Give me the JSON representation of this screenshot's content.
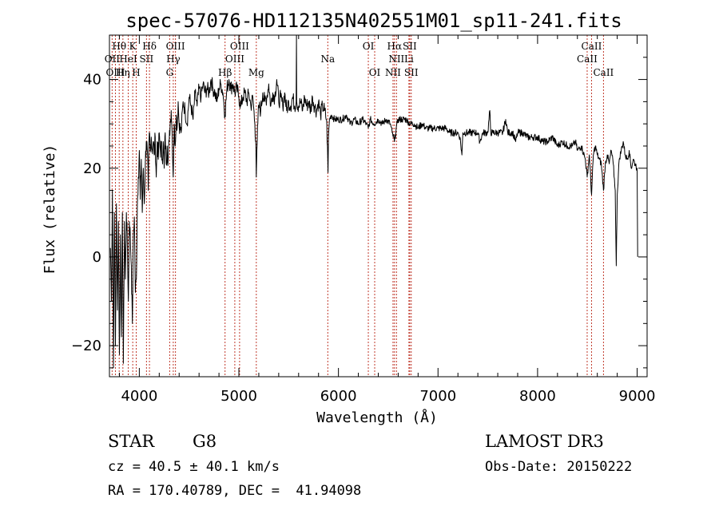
{
  "chart_data": {
    "type": "line",
    "title": "spec-57076-HD112135N402551M01_sp11-241.fits",
    "xlabel": "Wavelength (Å)",
    "ylabel": "Flux (relative)",
    "xlim": [
      3700,
      9100
    ],
    "ylim": [
      -27,
      50
    ],
    "xticks": [
      {
        "value": 4000,
        "label": "4000"
      },
      {
        "value": 5000,
        "label": "5000"
      },
      {
        "value": 6000,
        "label": "6000"
      },
      {
        "value": 7000,
        "label": "7000"
      },
      {
        "value": 8000,
        "label": "8000"
      },
      {
        "value": 9000,
        "label": "9000"
      }
    ],
    "yticks": [
      {
        "value": -20,
        "label": "−20"
      },
      {
        "value": 0,
        "label": "0"
      },
      {
        "value": 20,
        "label": "20"
      },
      {
        "value": 40,
        "label": "40"
      }
    ],
    "x_minor_step": 200,
    "y_minor_step": 5,
    "spectral_lines": [
      {
        "label": "Hθ",
        "wavelength": 3798,
        "row": 1
      },
      {
        "label": "OII",
        "wavelength": 3727,
        "row": 2
      },
      {
        "label": "OIII",
        "wavelength": 3760,
        "row": 3
      },
      {
        "label": "K",
        "wavelength": 3934,
        "row": 1
      },
      {
        "label": "HeI",
        "wavelength": 3889,
        "row": 2
      },
      {
        "label": "Hη",
        "wavelength": 3835,
        "row": 3
      },
      {
        "label": "SII",
        "wavelength": 4072,
        "row": 2
      },
      {
        "label": "H",
        "wavelength": 3969,
        "row": 3
      },
      {
        "label": "Hδ",
        "wavelength": 4102,
        "row": 1
      },
      {
        "label": "OIII",
        "wavelength": 4363,
        "row": 1
      },
      {
        "label": "Hγ",
        "wavelength": 4341,
        "row": 2
      },
      {
        "label": "G",
        "wavelength": 4305,
        "row": 3
      },
      {
        "label": "OIII",
        "wavelength": 5007,
        "row": 1
      },
      {
        "label": "OIII",
        "wavelength": 4959,
        "row": 2
      },
      {
        "label": "Hβ",
        "wavelength": 4861,
        "row": 3
      },
      {
        "label": "Mg",
        "wavelength": 5175,
        "row": 3
      },
      {
        "label": "Na",
        "wavelength": 5893,
        "row": 2
      },
      {
        "label": "OI",
        "wavelength": 6300,
        "row": 1
      },
      {
        "label": "OI",
        "wavelength": 6364,
        "row": 3
      },
      {
        "label": "Hα",
        "wavelength": 6563,
        "row": 1
      },
      {
        "label": "NII",
        "wavelength": 6583,
        "row": 2
      },
      {
        "label": "NII",
        "wavelength": 6548,
        "row": 3
      },
      {
        "label": "SII",
        "wavelength": 6716,
        "row": 1
      },
      {
        "label": "Li",
        "wavelength": 6708,
        "row": 2
      },
      {
        "label": "SII",
        "wavelength": 6731,
        "row": 3
      },
      {
        "label": "CaII",
        "wavelength": 8542,
        "row": 1
      },
      {
        "label": "CaII",
        "wavelength": 8498,
        "row": 2
      },
      {
        "label": "CaII",
        "wavelength": 8662,
        "row": 3
      }
    ],
    "anchors": [
      [
        3710,
        2
      ],
      [
        3720,
        -10
      ],
      [
        3730,
        15
      ],
      [
        3740,
        -25
      ],
      [
        3750,
        10
      ],
      [
        3760,
        -20
      ],
      [
        3770,
        12
      ],
      [
        3780,
        -12
      ],
      [
        3790,
        8
      ],
      [
        3800,
        -22
      ],
      [
        3810,
        5
      ],
      [
        3820,
        -18
      ],
      [
        3830,
        10
      ],
      [
        3840,
        -24
      ],
      [
        3850,
        8
      ],
      [
        3860,
        -5
      ],
      [
        3870,
        10
      ],
      [
        3880,
        3
      ],
      [
        3890,
        -10
      ],
      [
        3900,
        8
      ],
      [
        3910,
        4
      ],
      [
        3920,
        -2
      ],
      [
        3930,
        -15
      ],
      [
        3940,
        5
      ],
      [
        3950,
        9
      ],
      [
        3960,
        -8
      ],
      [
        3970,
        -5
      ],
      [
        3980,
        12
      ],
      [
        3990,
        18
      ],
      [
        4000,
        24
      ],
      [
        4010,
        13
      ],
      [
        4020,
        22
      ],
      [
        4030,
        10
      ],
      [
        4040,
        20
      ],
      [
        4050,
        12
      ],
      [
        4060,
        21
      ],
      [
        4070,
        26
      ],
      [
        4080,
        24
      ],
      [
        4090,
        15
      ],
      [
        4100,
        28
      ],
      [
        4110,
        24
      ],
      [
        4120,
        27
      ],
      [
        4130,
        24
      ],
      [
        4140,
        26
      ],
      [
        4150,
        23
      ],
      [
        4160,
        27
      ],
      [
        4170,
        18
      ],
      [
        4180,
        26
      ],
      [
        4190,
        22
      ],
      [
        4200,
        28
      ],
      [
        4210,
        24
      ],
      [
        4220,
        25
      ],
      [
        4230,
        22
      ],
      [
        4240,
        26
      ],
      [
        4250,
        20
      ],
      [
        4260,
        28
      ],
      [
        4270,
        21
      ],
      [
        4280,
        25
      ],
      [
        4290,
        22
      ],
      [
        4300,
        26
      ],
      [
        4310,
        30
      ],
      [
        4320,
        33
      ],
      [
        4330,
        28
      ],
      [
        4340,
        18
      ],
      [
        4350,
        30
      ],
      [
        4360,
        25
      ],
      [
        4370,
        32
      ],
      [
        4380,
        29
      ],
      [
        4390,
        35
      ],
      [
        4400,
        30
      ],
      [
        4420,
        28
      ],
      [
        4440,
        35
      ],
      [
        4460,
        33
      ],
      [
        4480,
        30
      ],
      [
        4500,
        36
      ],
      [
        4520,
        34
      ],
      [
        4540,
        31
      ],
      [
        4560,
        37
      ],
      [
        4580,
        34
      ],
      [
        4600,
        38
      ],
      [
        4620,
        36
      ],
      [
        4640,
        39
      ],
      [
        4660,
        37
      ],
      [
        4680,
        38
      ],
      [
        4700,
        37
      ],
      [
        4720,
        40
      ],
      [
        4740,
        38
      ],
      [
        4760,
        37
      ],
      [
        4780,
        35
      ],
      [
        4800,
        38
      ],
      [
        4820,
        39
      ],
      [
        4840,
        37
      ],
      [
        4860,
        32
      ],
      [
        4880,
        38
      ],
      [
        4900,
        40
      ],
      [
        4920,
        38
      ],
      [
        4940,
        39
      ],
      [
        4960,
        37
      ],
      [
        4980,
        38
      ],
      [
        5000,
        36
      ],
      [
        5020,
        34
      ],
      [
        5040,
        36
      ],
      [
        5060,
        37
      ],
      [
        5080,
        35
      ],
      [
        5100,
        37
      ],
      [
        5120,
        34
      ],
      [
        5140,
        36
      ],
      [
        5160,
        30
      ],
      [
        5170,
        26
      ],
      [
        5175,
        18
      ],
      [
        5180,
        24
      ],
      [
        5190,
        30
      ],
      [
        5200,
        34
      ],
      [
        5220,
        33
      ],
      [
        5240,
        37
      ],
      [
        5260,
        35
      ],
      [
        5280,
        36
      ],
      [
        5300,
        39
      ],
      [
        5320,
        34
      ],
      [
        5340,
        37
      ],
      [
        5360,
        36
      ],
      [
        5380,
        40
      ],
      [
        5400,
        35
      ],
      [
        5420,
        36
      ],
      [
        5440,
        34
      ],
      [
        5460,
        37
      ],
      [
        5480,
        33
      ],
      [
        5500,
        35
      ],
      [
        5520,
        34
      ],
      [
        5540,
        36
      ],
      [
        5560,
        34
      ],
      [
        5575,
        35
      ],
      [
        5578,
        50
      ],
      [
        5581,
        35
      ],
      [
        5600,
        34
      ],
      [
        5620,
        35
      ],
      [
        5640,
        33
      ],
      [
        5660,
        36
      ],
      [
        5680,
        34
      ],
      [
        5700,
        35
      ],
      [
        5720,
        33
      ],
      [
        5740,
        36
      ],
      [
        5760,
        34
      ],
      [
        5780,
        33
      ],
      [
        5800,
        35
      ],
      [
        5820,
        32
      ],
      [
        5840,
        34
      ],
      [
        5860,
        33
      ],
      [
        5880,
        31
      ],
      [
        5890,
        25
      ],
      [
        5895,
        19
      ],
      [
        5900,
        27
      ],
      [
        5910,
        31
      ],
      [
        5930,
        32
      ],
      [
        5960,
        31
      ],
      [
        6000,
        31
      ],
      [
        6040,
        31
      ],
      [
        6080,
        32
      ],
      [
        6120,
        30
      ],
      [
        6160,
        31
      ],
      [
        6200,
        30
      ],
      [
        6240,
        31
      ],
      [
        6280,
        30
      ],
      [
        6300,
        29
      ],
      [
        6320,
        31
      ],
      [
        6360,
        30
      ],
      [
        6400,
        31
      ],
      [
        6440,
        30
      ],
      [
        6480,
        31
      ],
      [
        6520,
        30
      ],
      [
        6540,
        28
      ],
      [
        6563,
        26
      ],
      [
        6580,
        29
      ],
      [
        6600,
        31
      ],
      [
        6640,
        31
      ],
      [
        6680,
        31
      ],
      [
        6720,
        30
      ],
      [
        6760,
        30
      ],
      [
        6800,
        29
      ],
      [
        6840,
        30
      ],
      [
        6880,
        29
      ],
      [
        6920,
        29
      ],
      [
        6960,
        29
      ],
      [
        7000,
        29
      ],
      [
        7040,
        29
      ],
      [
        7080,
        29
      ],
      [
        7120,
        28
      ],
      [
        7160,
        28
      ],
      [
        7200,
        28
      ],
      [
        7220,
        27
      ],
      [
        7240,
        23
      ],
      [
        7250,
        28
      ],
      [
        7300,
        28
      ],
      [
        7350,
        28
      ],
      [
        7400,
        28
      ],
      [
        7420,
        26
      ],
      [
        7450,
        28
      ],
      [
        7500,
        28
      ],
      [
        7520,
        33
      ],
      [
        7530,
        28
      ],
      [
        7550,
        28
      ],
      [
        7600,
        28
      ],
      [
        7650,
        28
      ],
      [
        7680,
        31
      ],
      [
        7700,
        28
      ],
      [
        7750,
        28
      ],
      [
        7780,
        26
      ],
      [
        7800,
        28
      ],
      [
        7850,
        28
      ],
      [
        7900,
        27
      ],
      [
        7950,
        27
      ],
      [
        8000,
        27
      ],
      [
        8050,
        26
      ],
      [
        8100,
        26
      ],
      [
        8150,
        27
      ],
      [
        8200,
        25
      ],
      [
        8250,
        26
      ],
      [
        8300,
        25
      ],
      [
        8350,
        25
      ],
      [
        8380,
        26
      ],
      [
        8400,
        24
      ],
      [
        8440,
        25
      ],
      [
        8480,
        22
      ],
      [
        8498,
        18
      ],
      [
        8520,
        23
      ],
      [
        8542,
        14
      ],
      [
        8560,
        23
      ],
      [
        8580,
        25
      ],
      [
        8600,
        23
      ],
      [
        8620,
        22
      ],
      [
        8640,
        21
      ],
      [
        8662,
        15
      ],
      [
        8680,
        21
      ],
      [
        8700,
        23
      ],
      [
        8720,
        21
      ],
      [
        8740,
        24
      ],
      [
        8760,
        21
      ],
      [
        8780,
        15
      ],
      [
        8790,
        -2
      ],
      [
        8800,
        14
      ],
      [
        8820,
        22
      ],
      [
        8840,
        24
      ],
      [
        8860,
        26
      ],
      [
        8880,
        23
      ],
      [
        8900,
        22
      ],
      [
        8920,
        24
      ],
      [
        8940,
        20
      ],
      [
        8960,
        22
      ],
      [
        8980,
        21
      ],
      [
        9000,
        20
      ],
      [
        9005,
        0
      ]
    ]
  },
  "info": {
    "object_type": "STAR",
    "subclass": "G8",
    "survey": "LAMOST DR3",
    "cz": "cz = 40.5 ± 40.1 km/s",
    "obs_date": "Obs-Date: 20150222",
    "coords": "RA = 170.40789, DEC =  41.94098"
  }
}
